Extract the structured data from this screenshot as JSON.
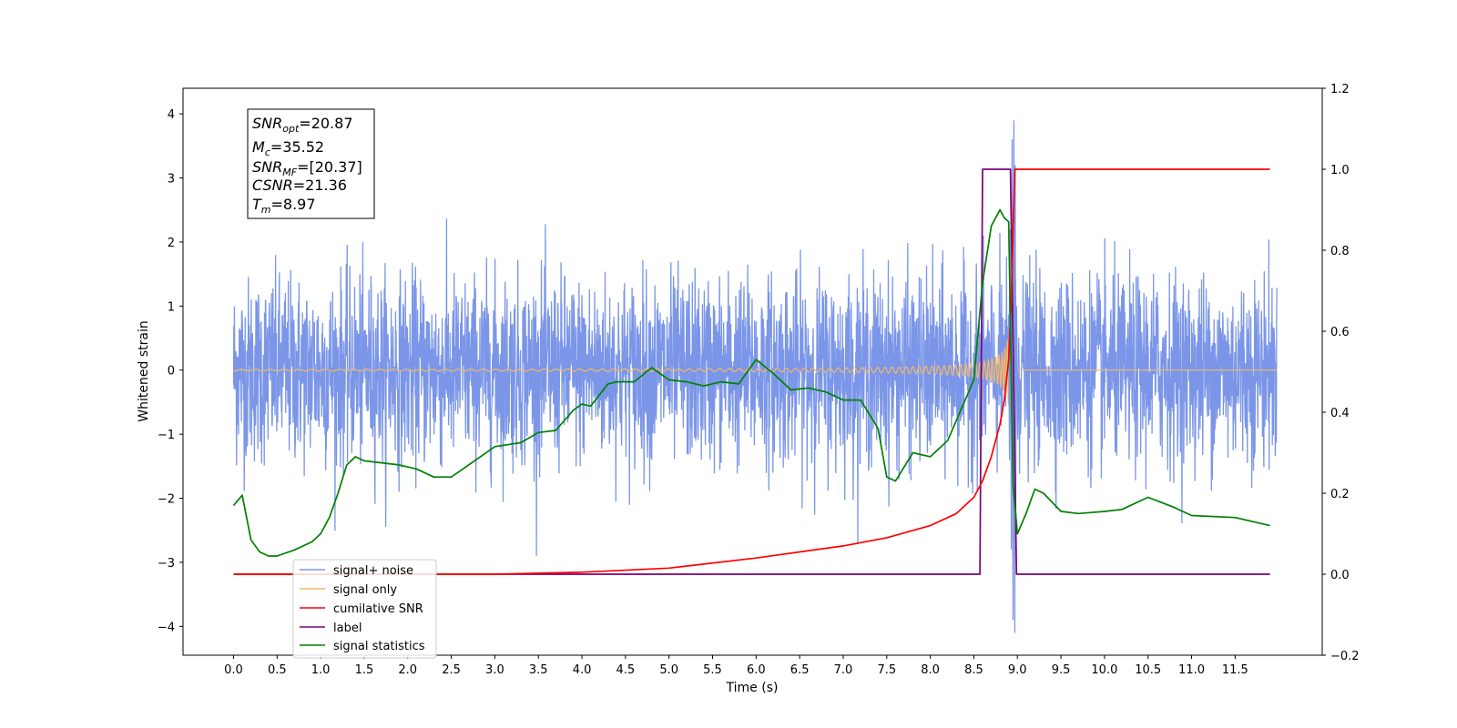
{
  "chart_data": {
    "type": "line",
    "xlabel": "Time (s)",
    "ylabel": "Whitened strain",
    "x_ticks": [
      "0.0",
      "0.5",
      "1.0",
      "1.5",
      "2.0",
      "2.5",
      "3.0",
      "3.5",
      "4.0",
      "4.5",
      "5.0",
      "5.5",
      "6.0",
      "6.5",
      "7.0",
      "7.5",
      "8.0",
      "8.5",
      "9.0",
      "9.5",
      "10.0",
      "10.5",
      "11.0",
      "11.5"
    ],
    "xlim": [
      -0.58,
      12.5
    ],
    "ylim_left": [
      -4.45,
      4.4
    ],
    "ylim_right": [
      -0.2,
      1.2
    ],
    "y_ticks_left": [
      "4",
      "3",
      "2",
      "1",
      "0",
      "−1",
      "−2",
      "−3",
      "−4"
    ],
    "y_ticks_right": [
      "1.2",
      "1.0",
      "0.8",
      "0.6",
      "0.4",
      "0.2",
      "0.0",
      "−0.2"
    ],
    "info_box": {
      "line1_base": "SNR",
      "line1_sub": "opt",
      "line1_val": "=20.87",
      "line2_base": "M",
      "line2_sub": "c",
      "line2_val": "=35.52",
      "line3_base": "SNR",
      "line3_sub": "MF",
      "line3_val": "=[20.37]",
      "line4_base": "CSNR",
      "line4_val": "=21.36",
      "line5_base": "T",
      "line5_sub": "m",
      "line5_val": "=8.97"
    },
    "legend": [
      "signal+ noise",
      "signal only",
      "cumilative SNR",
      "label",
      "signal statistics"
    ],
    "colors": {
      "signal_noise": "#7b96e8",
      "signal_only": "#f4b868",
      "cumulative_snr": "#ff0000",
      "label": "#7b007b",
      "signal_statistics": "#008000"
    },
    "series": [
      {
        "name": "signal statistics",
        "axis": "right",
        "x": [
          0.0,
          0.1,
          0.2,
          0.3,
          0.4,
          0.5,
          0.7,
          0.9,
          1.0,
          1.1,
          1.2,
          1.3,
          1.4,
          1.5,
          1.7,
          1.9,
          2.1,
          2.3,
          2.5,
          2.8,
          3.0,
          3.3,
          3.5,
          3.7,
          3.9,
          4.0,
          4.1,
          4.3,
          4.4,
          4.6,
          4.8,
          5.0,
          5.2,
          5.4,
          5.6,
          5.8,
          6.0,
          6.2,
          6.4,
          6.6,
          6.8,
          7.0,
          7.2,
          7.4,
          7.5,
          7.6,
          7.8,
          8.0,
          8.2,
          8.4,
          8.5,
          8.6,
          8.7,
          8.8,
          8.85,
          8.9,
          8.95,
          9.0,
          9.1,
          9.2,
          9.3,
          9.5,
          9.7,
          10.0,
          10.2,
          10.5,
          10.8,
          11.0,
          11.5,
          11.9
        ],
        "y": [
          0.17,
          0.195,
          0.085,
          0.055,
          0.045,
          0.045,
          0.06,
          0.08,
          0.1,
          0.14,
          0.2,
          0.27,
          0.29,
          0.28,
          0.275,
          0.27,
          0.26,
          0.24,
          0.24,
          0.285,
          0.315,
          0.325,
          0.35,
          0.355,
          0.405,
          0.42,
          0.415,
          0.47,
          0.475,
          0.475,
          0.51,
          0.48,
          0.475,
          0.465,
          0.475,
          0.47,
          0.53,
          0.495,
          0.455,
          0.46,
          0.45,
          0.43,
          0.43,
          0.36,
          0.24,
          0.23,
          0.3,
          0.29,
          0.33,
          0.43,
          0.48,
          0.72,
          0.86,
          0.9,
          0.88,
          0.87,
          0.22,
          0.1,
          0.15,
          0.21,
          0.2,
          0.155,
          0.15,
          0.155,
          0.16,
          0.19,
          0.165,
          0.145,
          0.14,
          0.12
        ]
      },
      {
        "name": "cumilative SNR",
        "axis": "right",
        "x": [
          0.0,
          2.0,
          3.0,
          4.0,
          5.0,
          6.0,
          7.0,
          7.5,
          8.0,
          8.3,
          8.5,
          8.6,
          8.7,
          8.8,
          8.85,
          8.9,
          8.93,
          8.95,
          8.97,
          9.0,
          11.9
        ],
        "y": [
          0.0,
          0.0,
          0.0,
          0.005,
          0.015,
          0.04,
          0.07,
          0.09,
          0.12,
          0.15,
          0.19,
          0.23,
          0.29,
          0.37,
          0.43,
          0.53,
          0.68,
          0.85,
          1.0,
          1.0,
          1.0
        ]
      },
      {
        "name": "label",
        "axis": "right",
        "x": [
          0.0,
          8.57,
          8.6,
          8.92,
          8.99,
          11.9
        ],
        "y": [
          0.0,
          0.0,
          1.0,
          1.0,
          0.0,
          0.0
        ]
      }
    ]
  }
}
